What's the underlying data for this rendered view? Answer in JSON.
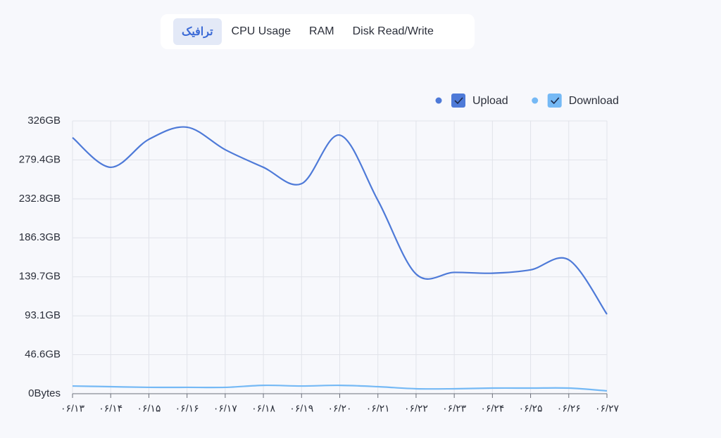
{
  "tabs": [
    "ترافیک",
    "CPU Usage",
    "RAM",
    "Disk Read/Write"
  ],
  "chart_data": {
    "type": "line",
    "categories": [
      "۰۶/۱۳",
      "۰۶/۱۴",
      "۰۶/۱۵",
      "۰۶/۱۶",
      "۰۶/۱۷",
      "۰۶/۱۸",
      "۰۶/۱۹",
      "۰۶/۲۰",
      "۰۶/۲۱",
      "۰۶/۲۲",
      "۰۶/۲۳",
      "۰۶/۲۴",
      "۰۶/۲۵",
      "۰۶/۲۶",
      "۰۶/۲۷"
    ],
    "series": [
      {
        "name": "Upload",
        "color": "#4e7ad8",
        "values": [
          306,
          270.6,
          304,
          318.5,
          291.6,
          270.6,
          251,
          309,
          231,
          143,
          145,
          144,
          148,
          160,
          95
        ]
      },
      {
        "name": "Download",
        "color": "#75b9f5",
        "values": [
          9.2,
          8.4,
          7.6,
          7.6,
          7.6,
          10,
          9.2,
          10,
          8.4,
          5.9,
          5.9,
          6.7,
          6.7,
          6.7,
          3.4
        ]
      }
    ],
    "ylim": [
      0,
      326
    ],
    "yticks": [
      {
        "value": 0,
        "label": "0Bytes"
      },
      {
        "value": 46.6,
        "label": "46.6GB"
      },
      {
        "value": 93.1,
        "label": "93.1GB"
      },
      {
        "value": 139.7,
        "label": "139.7GB"
      },
      {
        "value": 186.3,
        "label": "186.3GB"
      },
      {
        "value": 232.8,
        "label": "232.8GB"
      },
      {
        "value": 279.4,
        "label": "279.4GB"
      },
      {
        "value": 326,
        "label": "326GB"
      }
    ],
    "grid": true,
    "legend": "top-right"
  }
}
